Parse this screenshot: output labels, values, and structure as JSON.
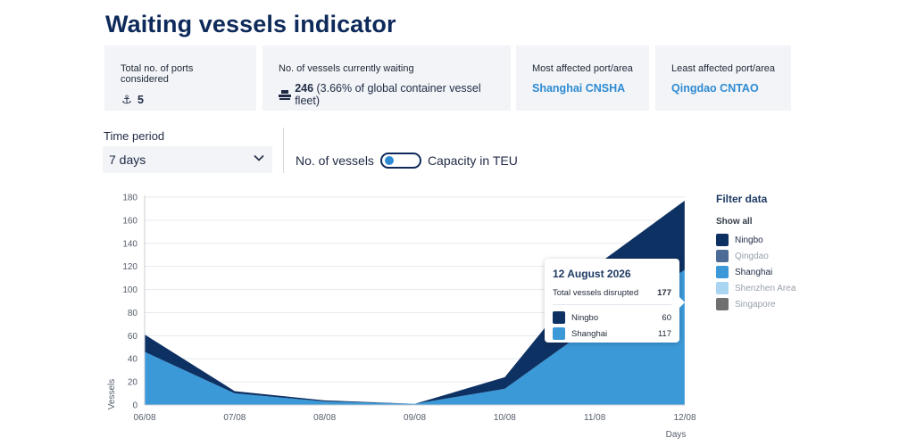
{
  "page": {
    "title": "Waiting vessels indicator"
  },
  "cards": [
    {
      "label": "Total no. of ports considered",
      "value": "5",
      "suffix": "",
      "icon": "anchor-icon"
    },
    {
      "label": "No. of vessels currently waiting",
      "value": "246",
      "suffix": " (3.66% of global container vessel fleet)",
      "icon": "ship-icon"
    },
    {
      "label": "Most affected port/area",
      "link": "Shanghai CNSHA"
    },
    {
      "label": "Least affected port/area",
      "link": "Qingdao CNTAO"
    }
  ],
  "controls": {
    "time_period_label": "Time period",
    "time_period_value": "7 days",
    "toggle_left": "No. of vessels",
    "toggle_right": "Capacity in TEU"
  },
  "legend": {
    "title": "Filter data",
    "show_all": "Show all",
    "items": [
      {
        "name": "Ningbo",
        "color": "#0e3163",
        "active": true
      },
      {
        "name": "Qingdao",
        "color": "#4d6c95",
        "active": false
      },
      {
        "name": "Shanghai",
        "color": "#3b99d8",
        "active": true
      },
      {
        "name": "Shenzhen Area",
        "color": "#a9d5f2",
        "active": false
      },
      {
        "name": "Singapore",
        "color": "#707070",
        "active": false
      }
    ]
  },
  "tooltip": {
    "date": "12 August 2026",
    "total_label": "Total vessels disrupted",
    "total_value": "177",
    "rows": [
      {
        "name": "Ningbo",
        "value": "60",
        "color": "#0e3163"
      },
      {
        "name": "Shanghai",
        "value": "117",
        "color": "#3b99d8"
      }
    ]
  },
  "chart_data": {
    "type": "area",
    "stacked": true,
    "categories": [
      "06/08",
      "07/08",
      "08/08",
      "09/08",
      "10/08",
      "11/08",
      "12/08"
    ],
    "series": [
      {
        "name": "Shanghai",
        "color": "#3b99d8",
        "values": [
          46,
          10,
          3,
          1,
          14,
          70,
          117
        ]
      },
      {
        "name": "Ningbo",
        "color": "#0e3163",
        "values": [
          15,
          2,
          1,
          0,
          10,
          50,
          60
        ]
      }
    ],
    "xlabel": "Days",
    "ylabel": "Vessels",
    "ylim": [
      0,
      180
    ],
    "yticks": [
      0,
      20,
      40,
      60,
      80,
      100,
      120,
      140,
      160,
      180
    ],
    "grid": true,
    "legend_position": "right"
  }
}
